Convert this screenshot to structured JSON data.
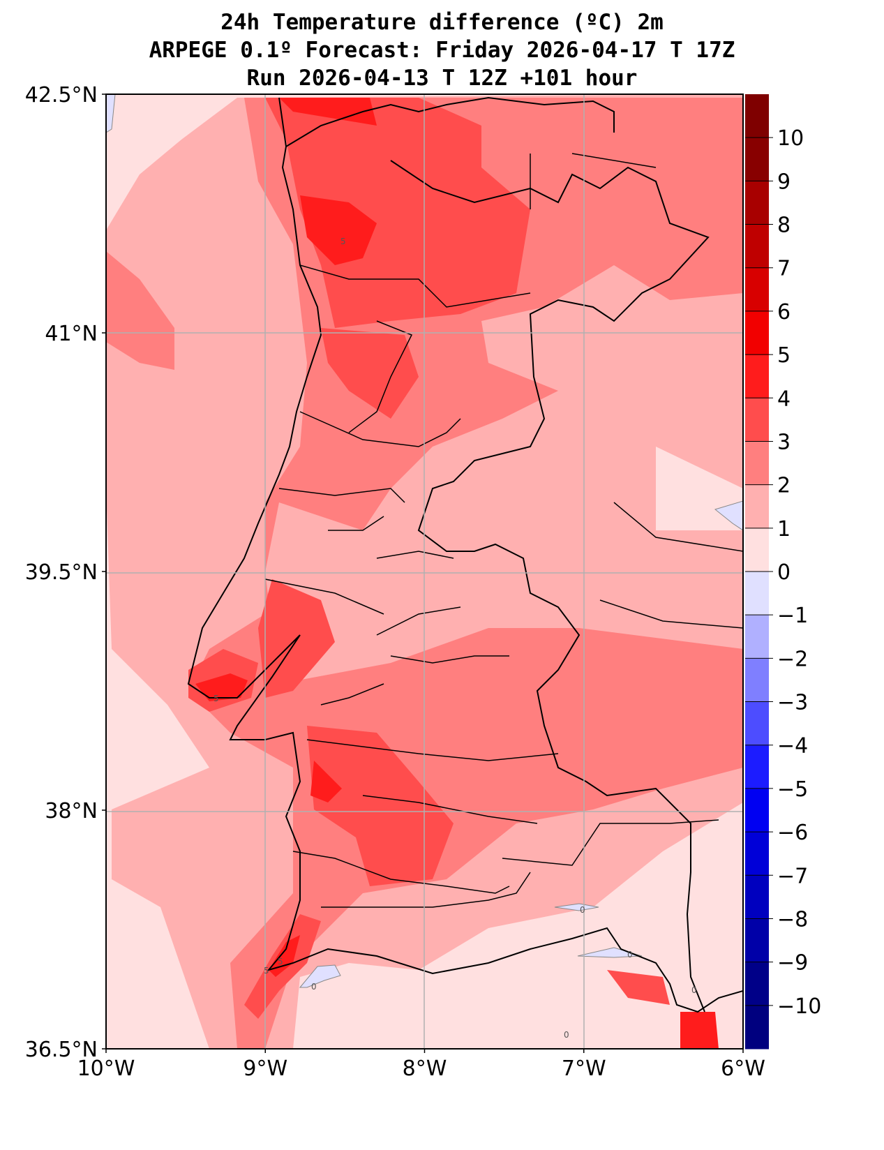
{
  "title": {
    "line1": "24h Temperature difference (ºC) 2m",
    "line2": "ARPEGE 0.1º Forecast: Friday 2026-04-17 T 17Z",
    "line3": "Run 2026-04-13 T 12Z +101 hour"
  },
  "chart_data": {
    "type": "heatmap",
    "variable": "24h Temperature difference 2m",
    "units": "ºC",
    "lon_range": [
      -10,
      -6
    ],
    "lat_range": [
      36.5,
      42.5
    ],
    "x_ticks": [
      "10°W",
      "9°W",
      "8°W",
      "7°W",
      "6°W"
    ],
    "x_tick_values": [
      -10,
      -9,
      -8,
      -7,
      -6
    ],
    "y_ticks": [
      "42.5°N",
      "41°N",
      "39.5°N",
      "38°N",
      "36.5°N"
    ],
    "y_tick_values": [
      42.5,
      41,
      39.5,
      38,
      36.5
    ],
    "grid": true,
    "colorbar": {
      "levels": [
        -11,
        -10,
        -9,
        -8,
        -7,
        -6,
        -5,
        -4,
        -3,
        -2,
        -1,
        0,
        1,
        2,
        3,
        4,
        5,
        6,
        7,
        8,
        9,
        10,
        11
      ],
      "tick_labels": [
        "−10",
        "−9",
        "−8",
        "−7",
        "−6",
        "−5",
        "−4",
        "−3",
        "−2",
        "−1",
        "0",
        "1",
        "2",
        "3",
        "4",
        "5",
        "6",
        "7",
        "8",
        "9",
        "10"
      ],
      "tick_values": [
        -10,
        -9,
        -8,
        -7,
        -6,
        -5,
        -4,
        -3,
        -2,
        -1,
        0,
        1,
        2,
        3,
        4,
        5,
        6,
        7,
        8,
        9,
        10
      ],
      "colors": [
        "#00007f",
        "#000088",
        "#0000a8",
        "#0000bf",
        "#0000d8",
        "#0000f2",
        "#1c1cff",
        "#4d4dff",
        "#7f7fff",
        "#b0b0ff",
        "#e0e0ff",
        "#ffe0e0",
        "#ffb0b0",
        "#ff7f7f",
        "#ff4d4d",
        "#ff1c1c",
        "#f20000",
        "#d80000",
        "#bf0000",
        "#a80000",
        "#880000",
        "#7f0000"
      ]
    },
    "contour_labels": [
      "5",
      "5",
      "5",
      "5",
      "0",
      "0",
      "0",
      "0",
      "0"
    ]
  }
}
